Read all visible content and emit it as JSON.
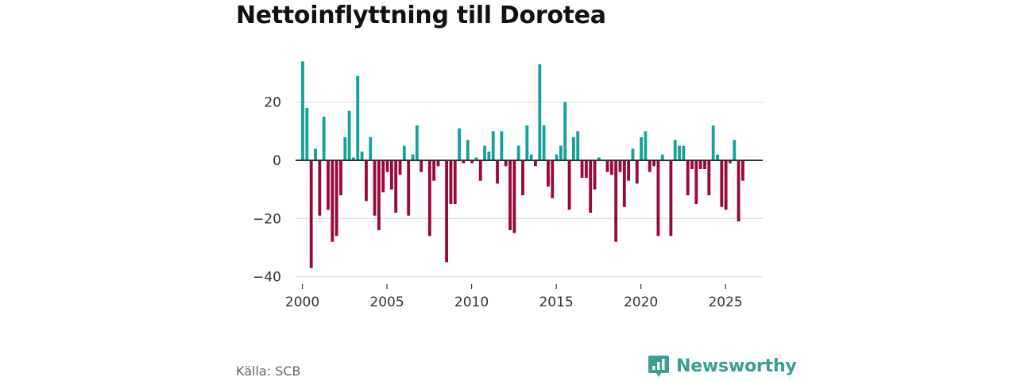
{
  "title": "Nettoinflyttning till Dorotea",
  "source": "Källa: SCB",
  "brand": {
    "name": "Newsworthy",
    "icon": "newsworthy-logo-icon"
  },
  "colors": {
    "positive": "#13a39b",
    "negative": "#99073f",
    "grid": "#d9d9d9",
    "zero": "#333333",
    "brand": "#3a9f93"
  },
  "chart_data": {
    "type": "bar",
    "title": "Nettoinflyttning till Dorotea",
    "xlabel": "",
    "ylabel": "",
    "ylim": [
      -42,
      36
    ],
    "yticks": [
      20,
      0,
      -20,
      -40
    ],
    "ytick_labels": [
      "20",
      "0",
      "−20",
      "−40"
    ],
    "xlim": [
      1999.6,
      2027.2
    ],
    "xticks": [
      2000,
      2005,
      2010,
      2015,
      2020,
      2025
    ],
    "xtick_labels": [
      "2000",
      "2005",
      "2010",
      "2015",
      "2020",
      "2025"
    ],
    "grid": true,
    "period": "quarterly",
    "start_year": 2000,
    "values": [
      34,
      18,
      -37,
      4,
      -19,
      15,
      -17,
      -28,
      -26,
      -12,
      8,
      17,
      1,
      29,
      3,
      -14,
      8,
      -19,
      -24,
      -11,
      -4,
      -10,
      -18,
      -5,
      5,
      -19,
      2,
      12,
      -4,
      0,
      -26,
      -7,
      -2,
      0,
      -35,
      -15,
      -15,
      11,
      -1,
      7,
      -1,
      1,
      -7,
      5,
      3,
      10,
      -8,
      10,
      -2,
      -24,
      -25,
      5,
      -12,
      12,
      2,
      -2,
      33,
      12,
      -9,
      -13,
      2,
      5,
      20,
      -17,
      8,
      10,
      -6,
      -6,
      -18,
      -10,
      1,
      0,
      -4,
      -5,
      -28,
      -4,
      -16,
      -7,
      4,
      -8,
      8,
      10,
      -4,
      -2,
      -26,
      2,
      0,
      -26,
      7,
      5,
      5,
      -12,
      -3,
      -15,
      -3,
      -3,
      -12,
      12,
      2,
      -16,
      -17,
      -1,
      7,
      -21,
      -7
    ]
  }
}
